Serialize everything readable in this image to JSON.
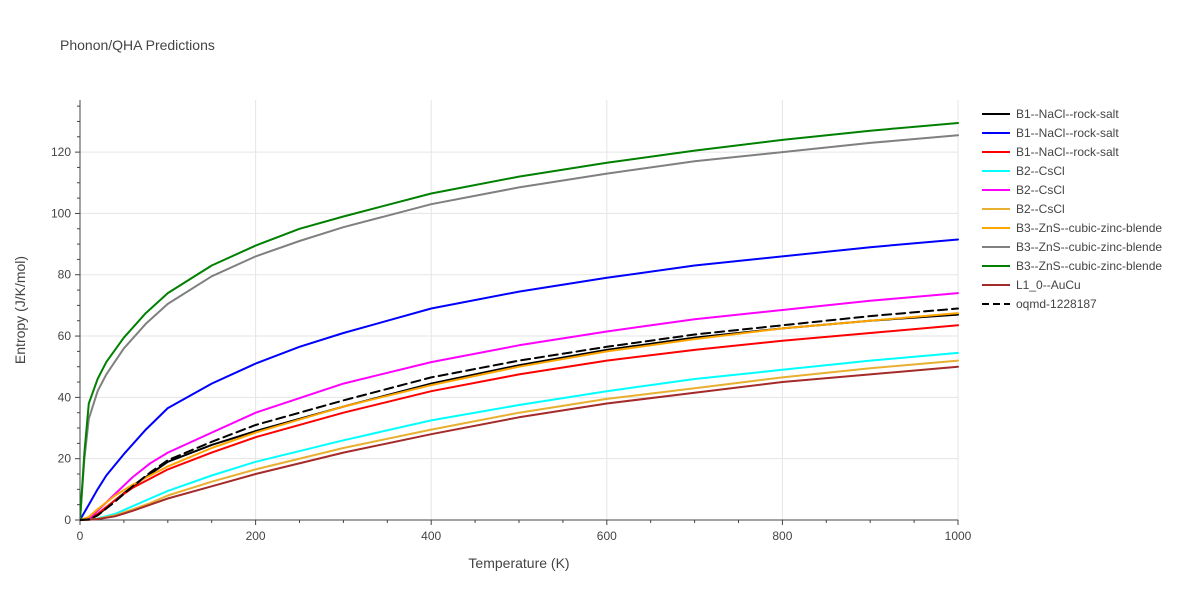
{
  "chart_data": {
    "type": "line",
    "title": "Phonon/QHA Predictions",
    "xlabel": "Temperature (K)",
    "ylabel": "Entropy (J/K/mol)",
    "xlim": [
      0,
      1000
    ],
    "ylim": [
      0,
      137
    ],
    "x_ticks": [
      0,
      200,
      400,
      600,
      800,
      1000
    ],
    "y_ticks": [
      0,
      20,
      40,
      60,
      80,
      100,
      120
    ],
    "grid": true,
    "legend_position": "right",
    "series": [
      {
        "name": "B1--NaCl--rock-salt",
        "color": "#000000",
        "dash": "solid",
        "x": [
          0,
          10,
          20,
          40,
          60,
          80,
          100,
          150,
          200,
          300,
          400,
          500,
          600,
          700,
          800,
          900,
          1000
        ],
        "y": [
          0,
          0.2,
          1.5,
          6.5,
          11,
          15,
          19,
          24.5,
          29,
          37,
          44.5,
          50.5,
          55.5,
          59.5,
          62.5,
          65,
          67
        ]
      },
      {
        "name": "B1--NaCl--rock-salt",
        "color": "#0000ff",
        "dash": "solid",
        "x": [
          0,
          10,
          20,
          30,
          50,
          75,
          100,
          150,
          200,
          250,
          300,
          400,
          500,
          600,
          700,
          800,
          900,
          1000
        ],
        "y": [
          0,
          5,
          10,
          14.5,
          21.5,
          29.5,
          36.5,
          44.5,
          51,
          56.5,
          61,
          69,
          74.5,
          79,
          83,
          86,
          89,
          91.5
        ]
      },
      {
        "name": "B1--NaCl--rock-salt",
        "color": "#ff0000",
        "dash": "solid",
        "x": [
          0,
          10,
          20,
          40,
          60,
          80,
          100,
          150,
          200,
          300,
          400,
          500,
          600,
          700,
          800,
          900,
          1000
        ],
        "y": [
          0,
          0.5,
          2,
          6.5,
          10.5,
          13.5,
          16.5,
          22,
          27,
          35,
          42,
          47.5,
          52,
          55.5,
          58.5,
          61,
          63.5
        ]
      },
      {
        "name": "B2--CsCl",
        "color": "#00ffff",
        "dash": "solid",
        "x": [
          0,
          10,
          20,
          40,
          60,
          80,
          100,
          150,
          200,
          300,
          400,
          500,
          600,
          700,
          800,
          900,
          1000
        ],
        "y": [
          0,
          0.1,
          0.5,
          2,
          4.5,
          7,
          9.5,
          14.5,
          19,
          26,
          32.5,
          37.5,
          42,
          46,
          49,
          52,
          54.5
        ]
      },
      {
        "name": "B2--CsCl",
        "color": "#ff00ff",
        "dash": "solid",
        "x": [
          0,
          10,
          20,
          40,
          60,
          80,
          100,
          150,
          200,
          300,
          400,
          500,
          600,
          700,
          800,
          900,
          1000
        ],
        "y": [
          0,
          0.5,
          3,
          8.5,
          14,
          18.5,
          22,
          28.5,
          35,
          44.5,
          51.5,
          57,
          61.5,
          65.5,
          68.5,
          71.5,
          74
        ]
      },
      {
        "name": "B2--CsCl",
        "color": "#e8b030",
        "dash": "solid",
        "x": [
          0,
          10,
          20,
          40,
          60,
          80,
          100,
          150,
          200,
          300,
          400,
          500,
          600,
          700,
          800,
          900,
          1000
        ],
        "y": [
          0,
          0.1,
          0.4,
          1.5,
          3.5,
          5.5,
          8,
          12.5,
          16.5,
          23.5,
          29.5,
          35,
          39.5,
          43,
          46.5,
          49.5,
          52
        ]
      },
      {
        "name": "B3--ZnS--cubic-zinc-blende",
        "color": "#ffa500",
        "dash": "solid",
        "x": [
          0,
          10,
          20,
          40,
          60,
          80,
          100,
          150,
          200,
          300,
          400,
          500,
          600,
          700,
          800,
          900,
          1000
        ],
        "y": [
          0,
          1,
          3.5,
          8,
          11.5,
          14.5,
          17.5,
          23.5,
          28.5,
          37,
          44,
          50,
          55,
          59,
          62.5,
          65,
          67.5
        ]
      },
      {
        "name": "B3--ZnS--cubic-zinc-blende",
        "color": "#808080",
        "dash": "solid",
        "x": [
          0,
          5,
          10,
          20,
          30,
          50,
          75,
          100,
          150,
          200,
          250,
          300,
          400,
          500,
          600,
          700,
          800,
          900,
          1000
        ],
        "y": [
          0,
          20,
          33,
          42,
          47.5,
          56,
          64,
          70.5,
          79.5,
          86,
          91,
          95.5,
          103,
          108.5,
          113,
          117,
          120,
          123,
          125.5
        ]
      },
      {
        "name": "B3--ZnS--cubic-zinc-blende",
        "color": "#008000",
        "dash": "solid",
        "x": [
          0,
          5,
          10,
          20,
          30,
          50,
          75,
          100,
          150,
          200,
          250,
          300,
          400,
          500,
          600,
          700,
          800,
          900,
          1000
        ],
        "y": [
          0,
          22,
          38,
          46,
          51.5,
          59.5,
          67.5,
          74,
          83,
          89.5,
          95,
          99,
          106.5,
          112,
          116.5,
          120.5,
          124,
          127,
          129.5
        ]
      },
      {
        "name": "L1_0--AuCu",
        "color": "#a52a2a",
        "dash": "solid",
        "x": [
          0,
          10,
          20,
          40,
          60,
          80,
          100,
          150,
          200,
          300,
          400,
          500,
          600,
          700,
          800,
          900,
          1000
        ],
        "y": [
          0,
          0.1,
          0.3,
          1.2,
          3,
          5,
          7,
          11,
          15,
          22,
          28,
          33.5,
          38,
          41.5,
          45,
          47.5,
          50
        ]
      },
      {
        "name": "oqmd-1228187",
        "color": "#000000",
        "dash": "dash",
        "x": [
          0,
          10,
          20,
          40,
          60,
          80,
          100,
          150,
          200,
          300,
          400,
          500,
          600,
          700,
          800,
          900,
          1000
        ],
        "y": [
          0,
          0.2,
          1.5,
          6,
          11,
          15.5,
          19.5,
          25.5,
          31,
          39,
          46.5,
          52,
          56.5,
          60.5,
          63.5,
          66.5,
          69
        ]
      }
    ]
  }
}
